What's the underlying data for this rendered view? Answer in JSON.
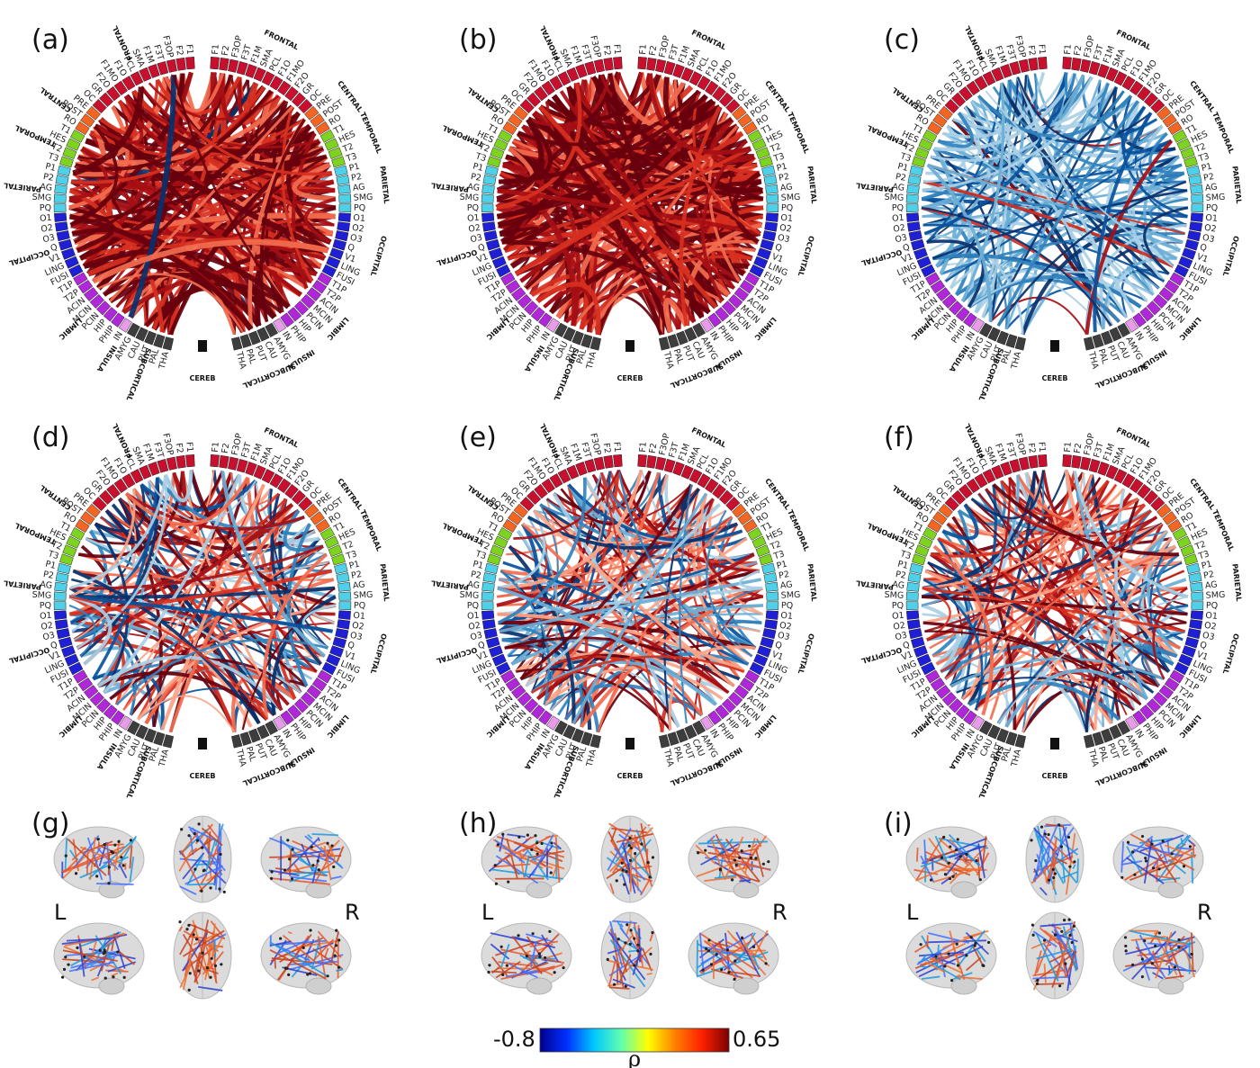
{
  "panels": [
    {
      "label": "(a)",
      "mode": "pos-strong"
    },
    {
      "label": "(b)",
      "mode": "pos-dense"
    },
    {
      "label": "(c)",
      "mode": "neg"
    },
    {
      "label": "(d)",
      "mode": "mixed"
    },
    {
      "label": "(e)",
      "mode": "mixed2"
    },
    {
      "label": "(f)",
      "mode": "mixed3"
    }
  ],
  "brain_panels": [
    {
      "label": "(g)",
      "left": "L",
      "right": "R"
    },
    {
      "label": "(h)",
      "left": "L",
      "right": "R"
    },
    {
      "label": "(i)",
      "left": "L",
      "right": "R"
    }
  ],
  "right_rois": [
    "F1",
    "F2",
    "F3OP",
    "F3T",
    "F1M",
    "SMA",
    "PCL",
    "F1O",
    "F1MO",
    "F2O",
    "GR",
    "OC",
    "PRE",
    "POST",
    "RO",
    "T1",
    "HES",
    "T2",
    "T3",
    "P1",
    "P2",
    "AG",
    "SMG",
    "PQ",
    "O1",
    "O2",
    "O3",
    "Q",
    "V1",
    "LING",
    "FUSI",
    "T1P",
    "T2P",
    "ACIN",
    "MCIN",
    "PCIN",
    "HIP",
    "PHIP",
    "IN",
    "AMYG",
    "CAU",
    "PUT",
    "PAL",
    "THA"
  ],
  "left_rois": [
    "F1",
    "F2",
    "F3OP",
    "F3T",
    "F1M",
    "SMA",
    "PCL",
    "F1O",
    "F1MO",
    "F2O",
    "GR",
    "OC",
    "PRE",
    "POST",
    "RO",
    "T1",
    "HES",
    "T2",
    "T3",
    "P1",
    "P2",
    "AG",
    "SMG",
    "PQ",
    "O1",
    "O2",
    "O3",
    "Q",
    "V1",
    "LING",
    "FUSI",
    "T1P",
    "T2P",
    "ACIN",
    "MCIN",
    "PCIN",
    "HIP",
    "PHIP",
    "IN",
    "AMYG",
    "CAU",
    "PUT",
    "PAL",
    "THA"
  ],
  "lobes": [
    {
      "name": "FRONTAL",
      "count": 12,
      "color": "#c8102e"
    },
    {
      "name": "CENTRAL",
      "count": 3,
      "color": "#f26522"
    },
    {
      "name": "TEMPORAL",
      "count": 4,
      "color": "#7ed321"
    },
    {
      "name": "PARIETAL",
      "count": 5,
      "color": "#4dd0e8"
    },
    {
      "name": "OCCIPITAL",
      "count": 7,
      "color": "#1f1fd6"
    },
    {
      "name": "LIMBIC",
      "count": 7,
      "color": "#b026d9"
    },
    {
      "name": "INSULA",
      "count": 1,
      "color": "#e79be8"
    },
    {
      "name": "SUBCORTICAL",
      "count": 5,
      "color": "#3d3d3d"
    }
  ],
  "cereb_label": "CEREB",
  "colorbar": {
    "min": "-0.8",
    "max": "0.65",
    "symbol": "ρ",
    "stops": [
      "#00008f",
      "#0030ff",
      "#00c8ff",
      "#60ffb0",
      "#ffff00",
      "#ff8000",
      "#ff2000",
      "#7a0000"
    ]
  },
  "colors": {
    "pos": [
      "#fca487",
      "#f26d4f",
      "#d7301f",
      "#a50f15",
      "#67000d"
    ],
    "neg": [
      "#a9cfe5",
      "#6aaed6",
      "#3182bd",
      "#08519c",
      "#08306b"
    ]
  }
}
